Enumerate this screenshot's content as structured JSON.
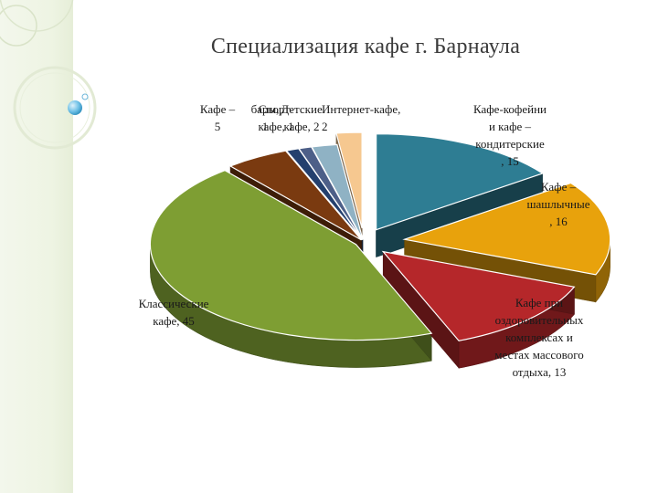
{
  "title": "Специализация кафе г. Барнаула",
  "chart_data": {
    "type": "pie",
    "title": "Специализация кафе г. Барнаула",
    "slices": [
      {
        "label": [
          "Кафе-кофейни",
          "и кафе –",
          "кондитерские",
          ", 15"
        ],
        "name": "Кафе-кофейни и кафе – кондитерские",
        "value": 15,
        "color": "#2e7d93"
      },
      {
        "label": [
          "Кафе –",
          "шашлычные",
          ", 16"
        ],
        "name": "Кафе – шашлычные",
        "value": 16,
        "color": "#e8a20c"
      },
      {
        "label": [
          "Кафе при",
          "оздоровительных",
          "комплексах и",
          "местах массового",
          "отдыха, 13"
        ],
        "name": "Кафе при оздоровительных комплексах и местах массового отдыха",
        "value": 13,
        "color": "#b5272a"
      },
      {
        "label": [
          "Классические",
          "кафе, 45"
        ],
        "name": "Классические кафе",
        "value": 45,
        "color": "#7e9e33"
      },
      {
        "label": [
          "Кафе –",
          "5"
        ],
        "name": "Кафе –",
        "value": 5,
        "color": "#7a3a10"
      },
      {
        "label": [
          "бары,",
          "1"
        ],
        "name": "бары",
        "value": 1,
        "color": "#24406e"
      },
      {
        "label": [
          "Спорт-",
          "кафе, 1"
        ],
        "name": "Спорт-кафе",
        "value": 1,
        "color": "#4d5f88"
      },
      {
        "label": [
          "Детские",
          "кафе, 2"
        ],
        "name": "Детские кафе",
        "value": 2,
        "color": "#8fb2c4"
      },
      {
        "label": [
          "Интернет-кафе,",
          "2"
        ],
        "name": "Интернет-кафе",
        "value": 2,
        "color": "#f6c890"
      }
    ]
  }
}
